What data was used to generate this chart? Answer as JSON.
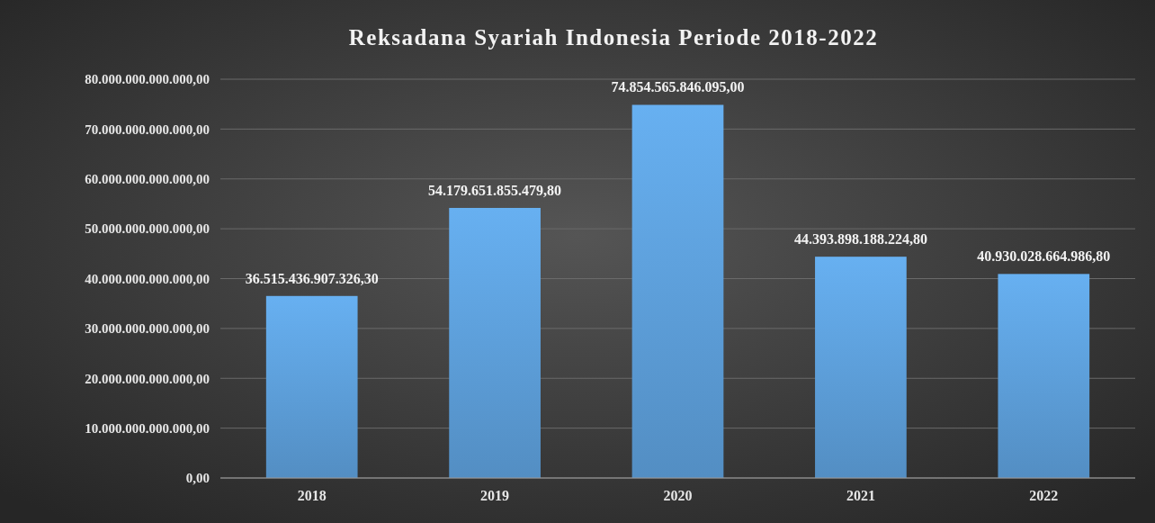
{
  "chart_data": {
    "type": "bar",
    "title": "Reksadana Syariah Indonesia Periode 2018-2022",
    "categories": [
      "2018",
      "2019",
      "2020",
      "2021",
      "2022"
    ],
    "values": [
      36515436907326.3,
      54179651855479.8,
      74854565846095.0,
      44393898188224.8,
      40930028664986.8
    ],
    "value_labels": [
      "36.515.436.907.326,30",
      "54.179.651.855.479,80",
      "74.854.565.846.095,00",
      "44.393.898.188.224,80",
      "40.930.028.664.986,80"
    ],
    "color": "#5b9bd5",
    "ylim": [
      0,
      80000000000000
    ],
    "yticks": [
      {
        "value": 0,
        "label": "0,00"
      },
      {
        "value": 10000000000000,
        "label": "10.000.000.000.000,00"
      },
      {
        "value": 20000000000000,
        "label": "20.000.000.000.000,00"
      },
      {
        "value": 30000000000000,
        "label": "30.000.000.000.000,00"
      },
      {
        "value": 40000000000000,
        "label": "40.000.000.000.000,00"
      },
      {
        "value": 50000000000000,
        "label": "50.000.000.000.000,00"
      },
      {
        "value": 60000000000000,
        "label": "60.000.000.000.000,00"
      },
      {
        "value": 70000000000000,
        "label": "70.000.000.000.000,00"
      },
      {
        "value": 80000000000000,
        "label": "80.000.000.000.000,00"
      }
    ],
    "grid": "y"
  }
}
